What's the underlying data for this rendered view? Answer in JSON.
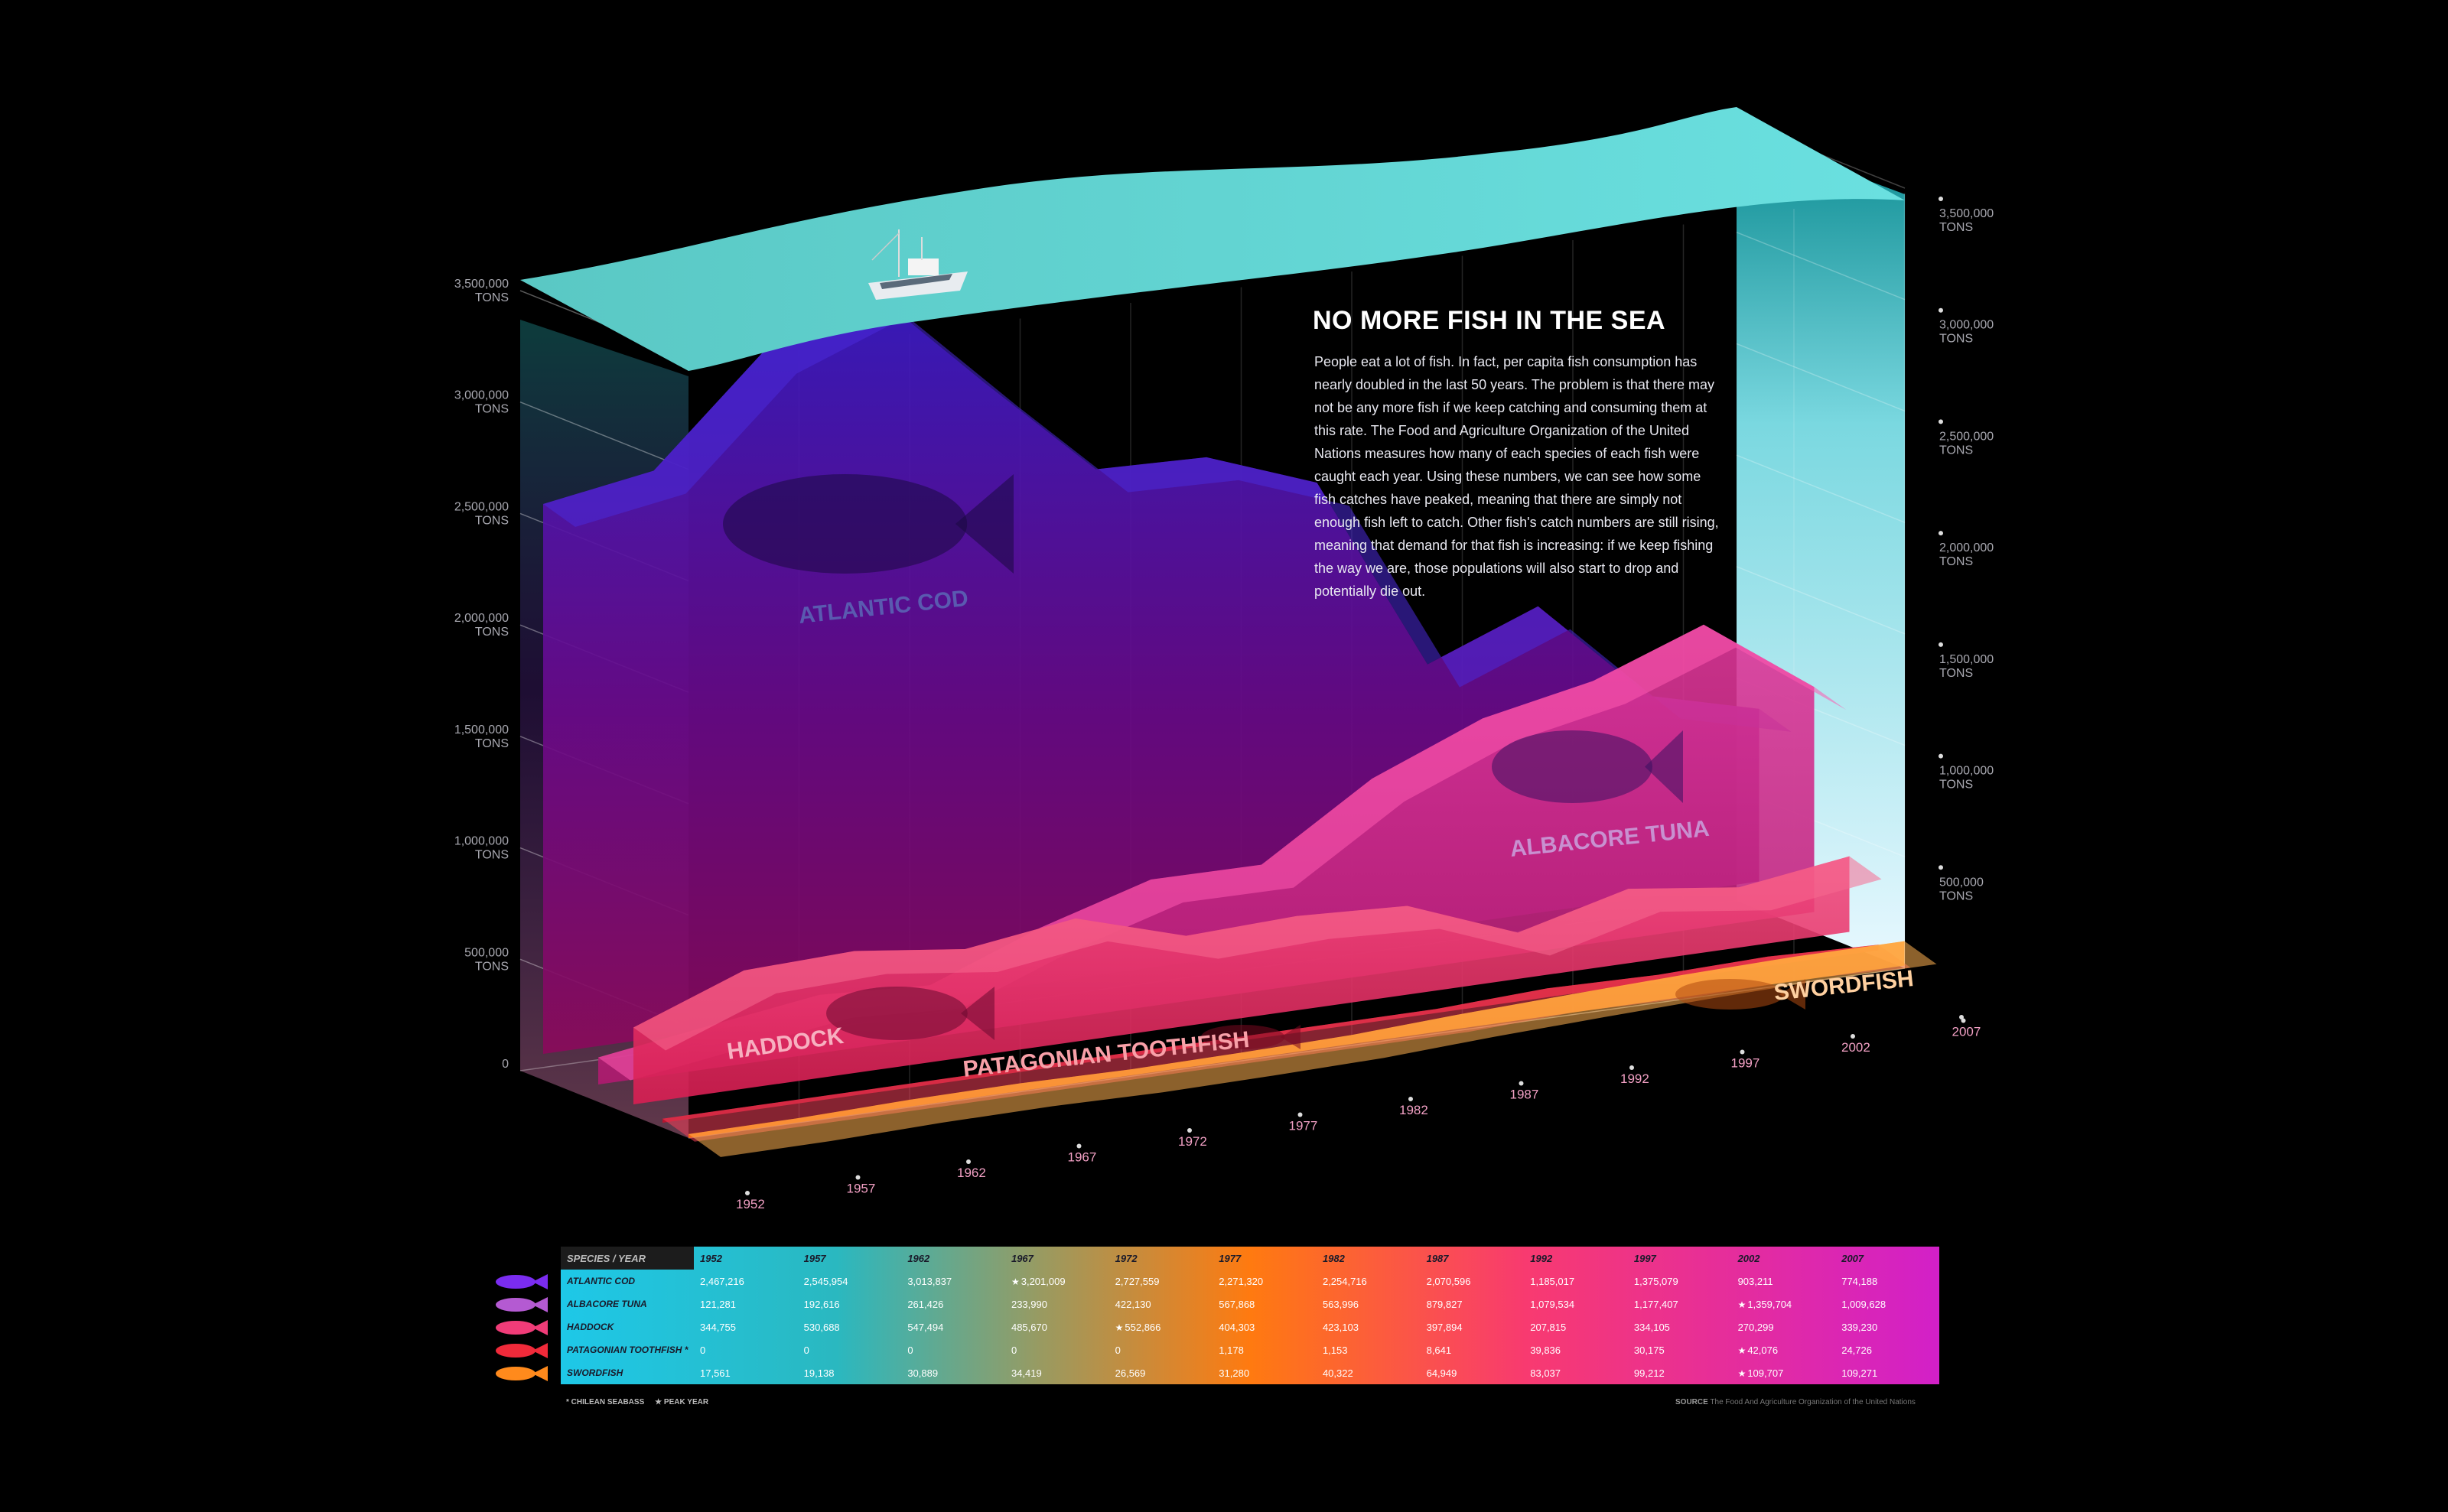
{
  "title": "NO MORE FISH IN THE SEA",
  "description": "People eat a lot of fish. In fact, per capita fish consumption has nearly doubled in the last 50 years. The problem is that there may not be any more fish if we keep catching and consuming them at this rate. The Food and Agriculture Organization of the United Nations measures how many of each species of each fish were caught each year. Using these numbers, we can see how some fish catches have peaked, meaning that there are simply not enough fish left to catch. Other fish's catch numbers are still rising, meaning that demand for that fish is increasing: if we keep fishing the way we are, those populations will also start to drop and potentially die out.",
  "footnote_chilean": "* CHILEAN SEABASS",
  "footnote_peak": "★ PEAK YEAR",
  "source_label": "SOURCE",
  "source_text": "The Food And Agriculture Organization of the United Nations",
  "table_header": "SPECIES / YEAR",
  "colors": {
    "atlantic_cod": "#7a2cf0",
    "albacore_tuna": "#b45ad2",
    "haddock": "#f03c78",
    "patagonian_toothfish": "#f02a3a",
    "swordfish": "#ff8a1c",
    "water": "#5ad2d2"
  },
  "chart_data": {
    "type": "area",
    "title": "NO MORE FISH IN THE SEA",
    "x": [
      "1952",
      "1957",
      "1962",
      "1967",
      "1972",
      "1977",
      "1982",
      "1987",
      "1992",
      "1997",
      "2002",
      "2007"
    ],
    "ylim": [
      0,
      3500000
    ],
    "y_ticks": [
      "0",
      "500,000",
      "1,000,000",
      "1,500,000",
      "2,000,000",
      "2,500,000",
      "3,000,000",
      "3,500,000"
    ],
    "y_ticks_left": [
      {
        "value": 0,
        "label": "0",
        "unit": ""
      },
      {
        "value": 500000,
        "label": "500,000",
        "unit": "TONS"
      },
      {
        "value": 1000000,
        "label": "1,000,000",
        "unit": "TONS"
      },
      {
        "value": 1500000,
        "label": "1,500,000",
        "unit": "TONS"
      },
      {
        "value": 2000000,
        "label": "2,000,000",
        "unit": "TONS"
      },
      {
        "value": 2500000,
        "label": "2,500,000",
        "unit": "TONS"
      },
      {
        "value": 3000000,
        "label": "3,000,000",
        "unit": "TONS"
      },
      {
        "value": 3500000,
        "label": "3,500,000",
        "unit": "TONS"
      }
    ],
    "y_ticks_right": [
      {
        "value": 500000,
        "label": "500,000",
        "unit": "TONS"
      },
      {
        "value": 1000000,
        "label": "1,000,000",
        "unit": "TONS"
      },
      {
        "value": 1500000,
        "label": "1,500,000",
        "unit": "TONS"
      },
      {
        "value": 2000000,
        "label": "2,000,000",
        "unit": "TONS"
      },
      {
        "value": 2500000,
        "label": "2,500,000",
        "unit": "TONS"
      },
      {
        "value": 3000000,
        "label": "3,000,000",
        "unit": "TONS"
      },
      {
        "value": 3500000,
        "label": "3,500,000",
        "unit": "TONS"
      }
    ],
    "grid": true,
    "series": [
      {
        "name": "ATLANTIC COD",
        "label": "ATLANTIC COD",
        "values": [
          2467216,
          2545954,
          3013837,
          3201009,
          2727559,
          2271320,
          2254716,
          2070596,
          1185017,
          1375079,
          903211,
          774188
        ],
        "peak_year": "1967"
      },
      {
        "name": "ALBACORE TUNA",
        "label": "ALBACORE TUNA",
        "values": [
          121281,
          192616,
          261426,
          233990,
          422130,
          567868,
          563996,
          879827,
          1079534,
          1177407,
          1359704,
          1009628
        ],
        "peak_year": "2002"
      },
      {
        "name": "HADDOCK",
        "label": "HADDOCK",
        "values": [
          344755,
          530688,
          547494,
          485670,
          552866,
          404303,
          423103,
          397894,
          207815,
          334105,
          270299,
          339230
        ],
        "peak_year": "1972"
      },
      {
        "name": "PATAGONIAN TOOTHFISH *",
        "label": "PATAGONIAN TOOTHFISH",
        "values": [
          0,
          0,
          0,
          0,
          0,
          1178,
          1153,
          8641,
          39836,
          30175,
          42076,
          24726
        ],
        "peak_year": "2002"
      },
      {
        "name": "SWORDFISH",
        "label": "SWORDFISH",
        "values": [
          17561,
          19138,
          30889,
          34419,
          26569,
          31280,
          40322,
          64949,
          83037,
          99212,
          109707,
          109271
        ],
        "peak_year": "2002"
      }
    ]
  },
  "table": {
    "header": [
      "SPECIES / YEAR",
      "1952",
      "1957",
      "1962",
      "1967",
      "1972",
      "1977",
      "1982",
      "1987",
      "1992",
      "1997",
      "2002",
      "2007"
    ],
    "rows": [
      {
        "species": "ATLANTIC COD",
        "icon": "cod-icon",
        "cells": [
          "2,467,216",
          "2,545,954",
          "3,013,837",
          "3,201,009",
          "2,727,559",
          "2,271,320",
          "2,254,716",
          "2,070,596",
          "1,185,017",
          "1,375,079",
          "903,211",
          "774,188"
        ],
        "peak_index": 3
      },
      {
        "species": "ALBACORE TUNA",
        "icon": "tuna-icon",
        "cells": [
          "121,281",
          "192,616",
          "261,426",
          "233,990",
          "422,130",
          "567,868",
          "563,996",
          "879,827",
          "1,079,534",
          "1,177,407",
          "1,359,704",
          "1,009,628"
        ],
        "peak_index": 10
      },
      {
        "species": "HADDOCK",
        "icon": "haddock-icon",
        "cells": [
          "344,755",
          "530,688",
          "547,494",
          "485,670",
          "552,866",
          "404,303",
          "423,103",
          "397,894",
          "207,815",
          "334,105",
          "270,299",
          "339,230"
        ],
        "peak_index": 4
      },
      {
        "species": "PATAGONIAN TOOTHFISH *",
        "icon": "toothfish-icon",
        "cells": [
          "0",
          "0",
          "0",
          "0",
          "0",
          "1,178",
          "1,153",
          "8,641",
          "39,836",
          "30,175",
          "42,076",
          "24,726"
        ],
        "peak_index": 10
      },
      {
        "species": "SWORDFISH",
        "icon": "swordfish-icon",
        "cells": [
          "17,561",
          "19,138",
          "30,889",
          "34,419",
          "26,569",
          "31,280",
          "40,322",
          "64,949",
          "83,037",
          "99,212",
          "109,707",
          "109,271"
        ],
        "peak_index": 10
      }
    ]
  }
}
